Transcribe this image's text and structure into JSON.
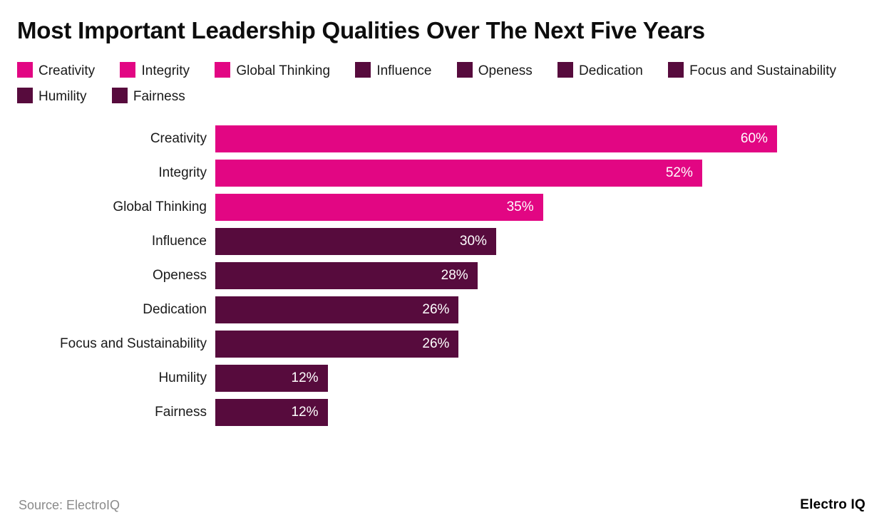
{
  "title": "Most Important Leadership Qualities Over The Next Five Years",
  "source": "Source: ElectroIQ",
  "brand": "Electro IQ",
  "colors": {
    "pink": "#E20683",
    "dark_maroon": "#570B3D"
  },
  "chart_data": {
    "type": "bar",
    "orientation": "horizontal",
    "title": "Most Important Leadership Qualities Over The Next Five Years",
    "xlabel": "",
    "ylabel": "",
    "xlim": [
      0,
      69.6
    ],
    "grid": false,
    "legend_position": "top",
    "categories": [
      "Creativity",
      "Integrity",
      "Global Thinking",
      "Influence",
      "Openess",
      "Dedication",
      "Focus and Sustainability",
      "Humility",
      "Fairness"
    ],
    "values": [
      60,
      52,
      35,
      30,
      28,
      26,
      26,
      12,
      12
    ],
    "value_labels": [
      "60%",
      "52%",
      "35%",
      "30%",
      "28%",
      "26%",
      "26%",
      "12%",
      "12%"
    ],
    "series_colors": [
      "#E20683",
      "#E20683",
      "#E20683",
      "#570B3D",
      "#570B3D",
      "#570B3D",
      "#570B3D",
      "#570B3D",
      "#570B3D"
    ],
    "legend": [
      {
        "label": "Creativity",
        "color": "#E20683"
      },
      {
        "label": "Integrity",
        "color": "#E20683"
      },
      {
        "label": "Global Thinking",
        "color": "#E20683"
      },
      {
        "label": "Influence",
        "color": "#570B3D"
      },
      {
        "label": "Openess",
        "color": "#570B3D"
      },
      {
        "label": "Dedication",
        "color": "#570B3D"
      },
      {
        "label": "Focus and Sustainability",
        "color": "#570B3D"
      },
      {
        "label": "Humility",
        "color": "#570B3D"
      },
      {
        "label": "Fairness",
        "color": "#570B3D"
      }
    ]
  }
}
